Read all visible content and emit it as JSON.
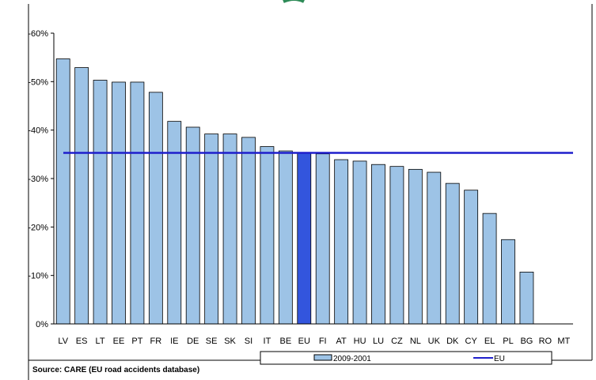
{
  "chart_data": {
    "type": "bar",
    "categories": [
      "LV",
      "ES",
      "LT",
      "EE",
      "PT",
      "FR",
      "IE",
      "DE",
      "SE",
      "SK",
      "SI",
      "IT",
      "BE",
      "EU",
      "FI",
      "AT",
      "HU",
      "LU",
      "CZ",
      "NL",
      "UK",
      "DK",
      "CY",
      "EL",
      "PL",
      "BG",
      "RO",
      "MT"
    ],
    "values": [
      -54.7,
      -52.9,
      -50.3,
      -49.9,
      -49.9,
      -47.8,
      -41.8,
      -40.6,
      -39.2,
      -39.2,
      -38.5,
      -36.6,
      -35.7,
      -35.3,
      -35.1,
      -33.9,
      -33.6,
      -32.9,
      -32.5,
      -31.9,
      -31.3,
      -29.0,
      -27.6,
      -22.8,
      -17.4,
      -10.7,
      0,
      0
    ],
    "highlight_category": "EU",
    "reference_line": {
      "name": "EU",
      "value": -35.3
    },
    "series": [
      {
        "name": "2009-2001",
        "values": [
          -54.7,
          -52.9,
          -50.3,
          -49.9,
          -49.9,
          -47.8,
          -41.8,
          -40.6,
          -39.2,
          -39.2,
          -38.5,
          -36.6,
          -35.7,
          -35.3,
          -35.1,
          -33.9,
          -33.6,
          -32.9,
          -32.5,
          -31.9,
          -31.3,
          -29.0,
          -27.6,
          -22.8,
          -17.4,
          -10.7,
          0,
          0
        ]
      }
    ],
    "yticks": [
      "-60%",
      "-50%",
      "-40%",
      "-30%",
      "-20%",
      "-10%",
      "0%"
    ],
    "ytick_values": [
      -60,
      -50,
      -40,
      -30,
      -20,
      -10,
      0
    ],
    "ylim": [
      0,
      -60
    ],
    "y_inverted": true,
    "grid": false,
    "legend_position": "bottom",
    "title": "",
    "xlabel": "",
    "ylabel": ""
  },
  "legend": {
    "bar_label": "2009-2001",
    "line_label": "EU"
  },
  "source": "Source: CARE (EU road accidents database)",
  "colors": {
    "bar": "#9DC3E6",
    "bar_highlight": "#3355DD",
    "bar_stroke": "#000000",
    "line": "#1F1FCC"
  }
}
